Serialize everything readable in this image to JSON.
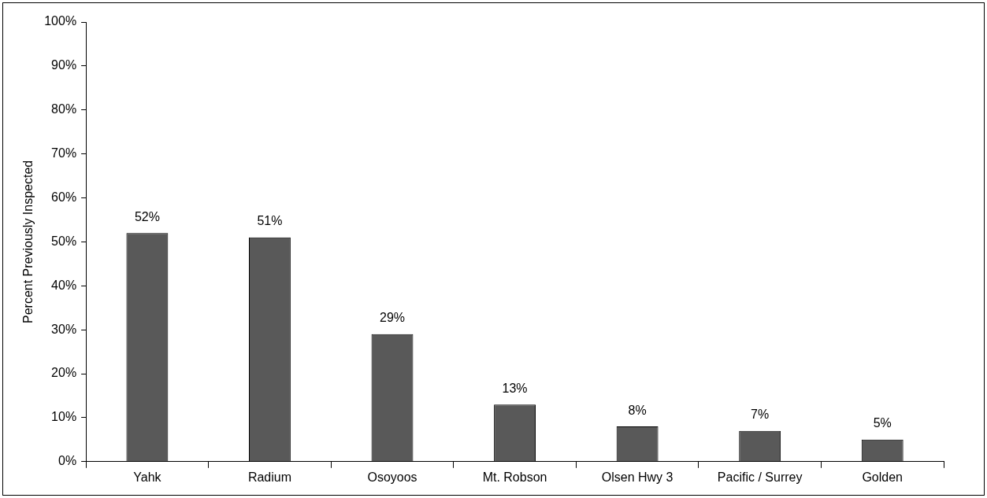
{
  "chart_data": {
    "type": "bar",
    "ylabel": "Percent Previously Inspected",
    "categories": [
      "Yahk",
      "Radium",
      "Osoyoos",
      "Mt. Robson",
      "Olsen Hwy 3",
      "Pacific / Surrey",
      "Golden"
    ],
    "values": [
      52,
      51,
      29,
      13,
      8,
      7,
      5
    ],
    "value_labels": [
      "52%",
      "51%",
      "29%",
      "13%",
      "8%",
      "7%",
      "5%"
    ],
    "color": "#595959",
    "ylim": [
      0,
      100
    ],
    "yticks": [
      {
        "value": 0,
        "label": "0%"
      },
      {
        "value": 10,
        "label": "10%"
      },
      {
        "value": 20,
        "label": "20%"
      },
      {
        "value": 30,
        "label": "30%"
      },
      {
        "value": 40,
        "label": "40%"
      },
      {
        "value": 50,
        "label": "50%"
      },
      {
        "value": 60,
        "label": "60%"
      },
      {
        "value": 70,
        "label": "70%"
      },
      {
        "value": 80,
        "label": "80%"
      },
      {
        "value": 90,
        "label": "90%"
      },
      {
        "value": 100,
        "label": "100%"
      }
    ],
    "grid": false,
    "legend": false
  }
}
